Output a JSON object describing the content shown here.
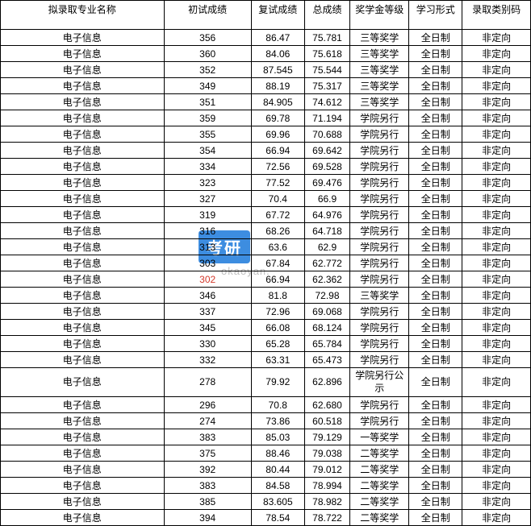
{
  "table": {
    "columns": [
      {
        "key": "major",
        "label": "拟录取专业名称",
        "class": "col-major"
      },
      {
        "key": "prelim",
        "label": "初试成绩",
        "class": "col-prelim"
      },
      {
        "key": "retest",
        "label": "复试成绩",
        "class": "col-retest"
      },
      {
        "key": "total",
        "label": "总成绩",
        "class": "col-total"
      },
      {
        "key": "scholar",
        "label": "奖学金等级",
        "class": "col-scholar"
      },
      {
        "key": "mode",
        "label": "学习形式",
        "class": "col-mode"
      },
      {
        "key": "category",
        "label": "录取类别码",
        "class": "col-category"
      }
    ],
    "rows": [
      {
        "major": "电子信息",
        "prelim": "356",
        "retest": "86.47",
        "total": "75.781",
        "scholar": "三等奖学",
        "mode": "全日制",
        "category": "非定向"
      },
      {
        "major": "电子信息",
        "prelim": "360",
        "retest": "84.06",
        "total": "75.618",
        "scholar": "三等奖学",
        "mode": "全日制",
        "category": "非定向"
      },
      {
        "major": "电子信息",
        "prelim": "352",
        "retest": "87.545",
        "total": "75.544",
        "scholar": "三等奖学",
        "mode": "全日制",
        "category": "非定向"
      },
      {
        "major": "电子信息",
        "prelim": "349",
        "retest": "88.19",
        "total": "75.317",
        "scholar": "三等奖学",
        "mode": "全日制",
        "category": "非定向"
      },
      {
        "major": "电子信息",
        "prelim": "351",
        "retest": "84.905",
        "total": "74.612",
        "scholar": "三等奖学",
        "mode": "全日制",
        "category": "非定向"
      },
      {
        "major": "电子信息",
        "prelim": "359",
        "retest": "69.78",
        "total": "71.194",
        "scholar": "学院另行",
        "mode": "全日制",
        "category": "非定向"
      },
      {
        "major": "电子信息",
        "prelim": "355",
        "retest": "69.96",
        "total": "70.688",
        "scholar": "学院另行",
        "mode": "全日制",
        "category": "非定向"
      },
      {
        "major": "电子信息",
        "prelim": "354",
        "retest": "66.94",
        "total": "69.642",
        "scholar": "学院另行",
        "mode": "全日制",
        "category": "非定向"
      },
      {
        "major": "电子信息",
        "prelim": "334",
        "retest": "72.56",
        "total": "69.528",
        "scholar": "学院另行",
        "mode": "全日制",
        "category": "非定向"
      },
      {
        "major": "电子信息",
        "prelim": "323",
        "retest": "77.52",
        "total": "69.476",
        "scholar": "学院另行",
        "mode": "全日制",
        "category": "非定向"
      },
      {
        "major": "电子信息",
        "prelim": "327",
        "retest": "70.4",
        "total": "66.9",
        "scholar": "学院另行",
        "mode": "全日制",
        "category": "非定向"
      },
      {
        "major": "电子信息",
        "prelim": "319",
        "retest": "67.72",
        "total": "64.976",
        "scholar": "学院另行",
        "mode": "全日制",
        "category": "非定向"
      },
      {
        "major": "电子信息",
        "prelim": "316",
        "retest": "68.26",
        "total": "64.718",
        "scholar": "学院另行",
        "mode": "全日制",
        "category": "非定向"
      },
      {
        "major": "电子信息",
        "prelim": "313",
        "retest": "63.6",
        "total": "62.9",
        "scholar": "学院另行",
        "mode": "全日制",
        "category": "非定向"
      },
      {
        "major": "电子信息",
        "prelim": "303",
        "retest": "67.84",
        "total": "62.772",
        "scholar": "学院另行",
        "mode": "全日制",
        "category": "非定向"
      },
      {
        "major": "电子信息",
        "prelim": "302",
        "retest": "66.94",
        "total": "62.362",
        "scholar": "学院另行",
        "mode": "全日制",
        "category": "非定向",
        "red": true
      },
      {
        "major": "电子信息",
        "prelim": "346",
        "retest": "81.8",
        "total": "72.98",
        "scholar": "三等奖学",
        "mode": "全日制",
        "category": "非定向"
      },
      {
        "major": "电子信息",
        "prelim": "337",
        "retest": "72.96",
        "total": "69.068",
        "scholar": "学院另行",
        "mode": "全日制",
        "category": "非定向"
      },
      {
        "major": "电子信息",
        "prelim": "345",
        "retest": "66.08",
        "total": "68.124",
        "scholar": "学院另行",
        "mode": "全日制",
        "category": "非定向"
      },
      {
        "major": "电子信息",
        "prelim": "330",
        "retest": "65.28",
        "total": "65.784",
        "scholar": "学院另行",
        "mode": "全日制",
        "category": "非定向"
      },
      {
        "major": "电子信息",
        "prelim": "332",
        "retest": "63.31",
        "total": "65.473",
        "scholar": "学院另行",
        "mode": "全日制",
        "category": "非定向"
      },
      {
        "major": "电子信息",
        "prelim": "278",
        "retest": "79.92",
        "total": "62.896",
        "scholar": "学院另行公示",
        "mode": "全日制",
        "category": "非定向",
        "tall": true
      },
      {
        "major": "电子信息",
        "prelim": "296",
        "retest": "70.8",
        "total": "62.680",
        "scholar": "学院另行",
        "mode": "全日制",
        "category": "非定向"
      },
      {
        "major": "电子信息",
        "prelim": "274",
        "retest": "73.86",
        "total": "60.518",
        "scholar": "学院另行",
        "mode": "全日制",
        "category": "非定向"
      },
      {
        "major": "电子信息",
        "prelim": "383",
        "retest": "85.03",
        "total": "79.129",
        "scholar": "一等奖学",
        "mode": "全日制",
        "category": "非定向"
      },
      {
        "major": "电子信息",
        "prelim": "375",
        "retest": "88.46",
        "total": "79.038",
        "scholar": "二等奖学",
        "mode": "全日制",
        "category": "非定向"
      },
      {
        "major": "电子信息",
        "prelim": "392",
        "retest": "80.44",
        "total": "79.012",
        "scholar": "二等奖学",
        "mode": "全日制",
        "category": "非定向"
      },
      {
        "major": "电子信息",
        "prelim": "383",
        "retest": "84.58",
        "total": "78.994",
        "scholar": "二等奖学",
        "mode": "全日制",
        "category": "非定向"
      },
      {
        "major": "电子信息",
        "prelim": "385",
        "retest": "83.605",
        "total": "78.982",
        "scholar": "二等奖学",
        "mode": "全日制",
        "category": "非定向"
      },
      {
        "major": "电子信息",
        "prelim": "394",
        "retest": "78.54",
        "total": "78.722",
        "scholar": "二等奖学",
        "mode": "全日制",
        "category": "非定向"
      }
    ]
  },
  "watermark": {
    "logo_text": "考研",
    "url_text": "okaoyan."
  },
  "style": {
    "border_color": "#000000",
    "background_color": "#ffffff",
    "font_size_main": 12,
    "font_size_total": 10,
    "watermark_bg": "#3d8de0",
    "watermark_text_color": "#ffffff",
    "watermark_url_color": "#bfbfbf",
    "red_text_color": "#d43a2c"
  }
}
